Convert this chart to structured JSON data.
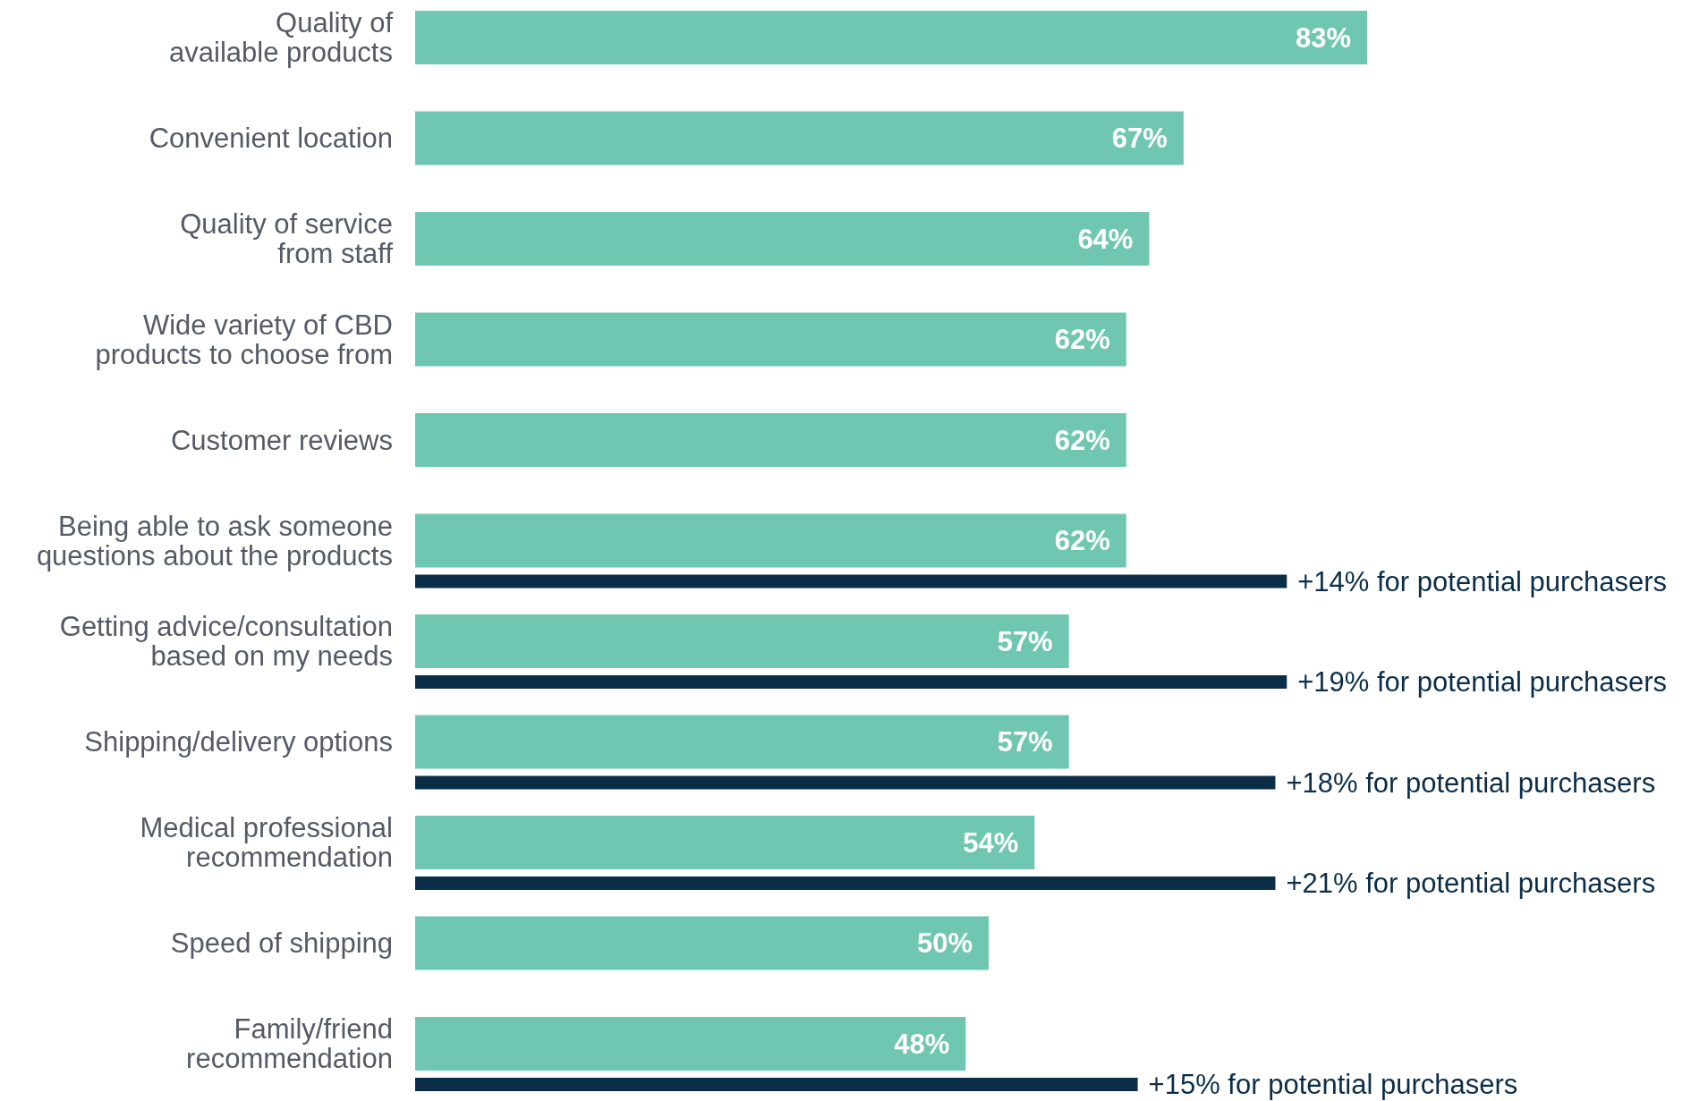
{
  "chart_data": {
    "type": "bar",
    "orientation": "horizontal",
    "categories": [
      "Quality of available products",
      "Convenient location",
      "Quality of service from staff",
      "Wide variety of CBD products to choose from",
      "Customer reviews",
      "Being able to ask someone questions about the products",
      "Getting advice/consultation based on my needs",
      "Shipping/delivery options",
      "Medical professional recommendation",
      "Speed of shipping",
      "Family/friend recommendation"
    ],
    "series": [
      {
        "color": "#6fc7b1",
        "values": [
          83,
          67,
          64,
          62,
          62,
          62,
          57,
          57,
          54,
          50,
          48
        ],
        "value_labels": [
          "83%",
          "67%",
          "64%",
          "62%",
          "62%",
          "62%",
          "57%",
          "57%",
          "54%",
          "50%",
          "48%"
        ]
      },
      {
        "color": "#0b2d48",
        "values": [
          null,
          null,
          null,
          null,
          null,
          76,
          76,
          75,
          75,
          null,
          63
        ]
      }
    ],
    "annotations": [
      {
        "text": "+14% for potential purchasers",
        "x": 76,
        "y": "Being able to ask someone questions about the products"
      },
      {
        "text": "+19% for potential purchasers",
        "x": 76,
        "y": "Getting advice/consultation based on my needs"
      },
      {
        "text": "+18% for potential purchasers",
        "x": 75,
        "y": "Shipping/delivery options"
      },
      {
        "text": "+21% for potential purchasers",
        "x": 75,
        "y": "Medical professional recommendation"
      },
      {
        "text": "+15% for potential purchasers",
        "x": 63,
        "y": "Family/friend recommendation"
      }
    ]
  }
}
